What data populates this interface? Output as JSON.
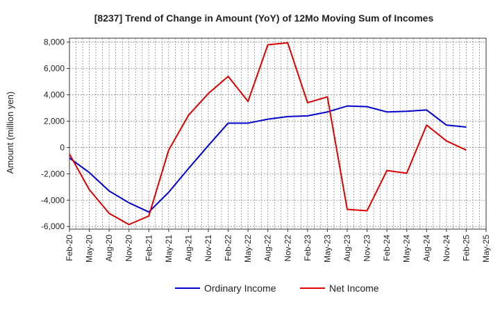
{
  "chart_data": {
    "type": "line",
    "title": "[8237]  Trend of Change in Amount (YoY) of 12Mo Moving Sum of Incomes",
    "xlabel": "",
    "ylabel": "Amount (million yen)",
    "ylim": [
      -6200,
      8300
    ],
    "yticks": [
      -6000,
      -4000,
      -2000,
      0,
      2000,
      4000,
      6000,
      8000
    ],
    "ytick_labels": [
      "-6,000",
      "-4,000",
      "-2,000",
      "0",
      "2,000",
      "4,000",
      "6,000",
      "8,000"
    ],
    "categories": [
      "Feb-20",
      "May-20",
      "Aug-20",
      "Nov-20",
      "Feb-21",
      "May-21",
      "Aug-21",
      "Nov-21",
      "Feb-22",
      "May-22",
      "Aug-22",
      "Nov-22",
      "Feb-23",
      "May-23",
      "Aug-23",
      "Nov-23",
      "Feb-24",
      "May-24",
      "Aug-24",
      "Nov-24",
      "Feb-25",
      "May-25"
    ],
    "grid": true,
    "legend_position": "bottom-center",
    "series": [
      {
        "name": "Ordinary Income",
        "color": "#0000cc",
        "values": [
          -800,
          -1900,
          -3300,
          -4200,
          -4900,
          -3400,
          -1600,
          150,
          1850,
          1850,
          2150,
          2350,
          2400,
          2700,
          3150,
          3100,
          2700,
          2750,
          2850,
          1700,
          1550,
          null
        ]
      },
      {
        "name": "Net Income",
        "color": "#dd0000",
        "values": [
          -500,
          -3200,
          -5000,
          -5850,
          -5200,
          -200,
          2450,
          4100,
          5400,
          3500,
          7800,
          7950,
          3400,
          3850,
          -4700,
          -4800,
          -1750,
          -1950,
          1700,
          500,
          -200,
          null
        ]
      }
    ]
  }
}
